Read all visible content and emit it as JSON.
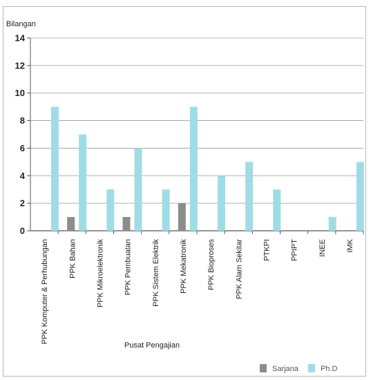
{
  "chart_data": {
    "type": "bar",
    "title": "",
    "ylabel": "Bilangan",
    "xlabel": "Pusat Pengajian",
    "ylim": [
      0,
      14
    ],
    "yticks": [
      0,
      2,
      4,
      6,
      8,
      10,
      12,
      14
    ],
    "grid": true,
    "legend_position": "bottom-right",
    "categories": [
      "PPK Komputer & Perhubungan",
      "PPK Bahan",
      "PPK Mikroelektronik",
      "PPK Pembuatan",
      "PPK Sistem Elektrik",
      "PPK Mekatronik",
      "PPK Bioproses",
      "PPK Alam Sekitar",
      "PTKPI",
      "PPIPT",
      "INEE",
      "IMK"
    ],
    "series": [
      {
        "name": "Sarjana",
        "color": "#8c8c8c",
        "values": [
          0,
          1,
          0,
          1,
          0,
          2,
          0,
          0,
          0,
          0,
          0,
          0
        ]
      },
      {
        "name": "Ph.D",
        "color": "#9fdde6",
        "values": [
          9,
          7,
          3,
          6,
          3,
          9,
          4,
          5,
          3,
          0,
          1,
          5
        ]
      }
    ]
  }
}
